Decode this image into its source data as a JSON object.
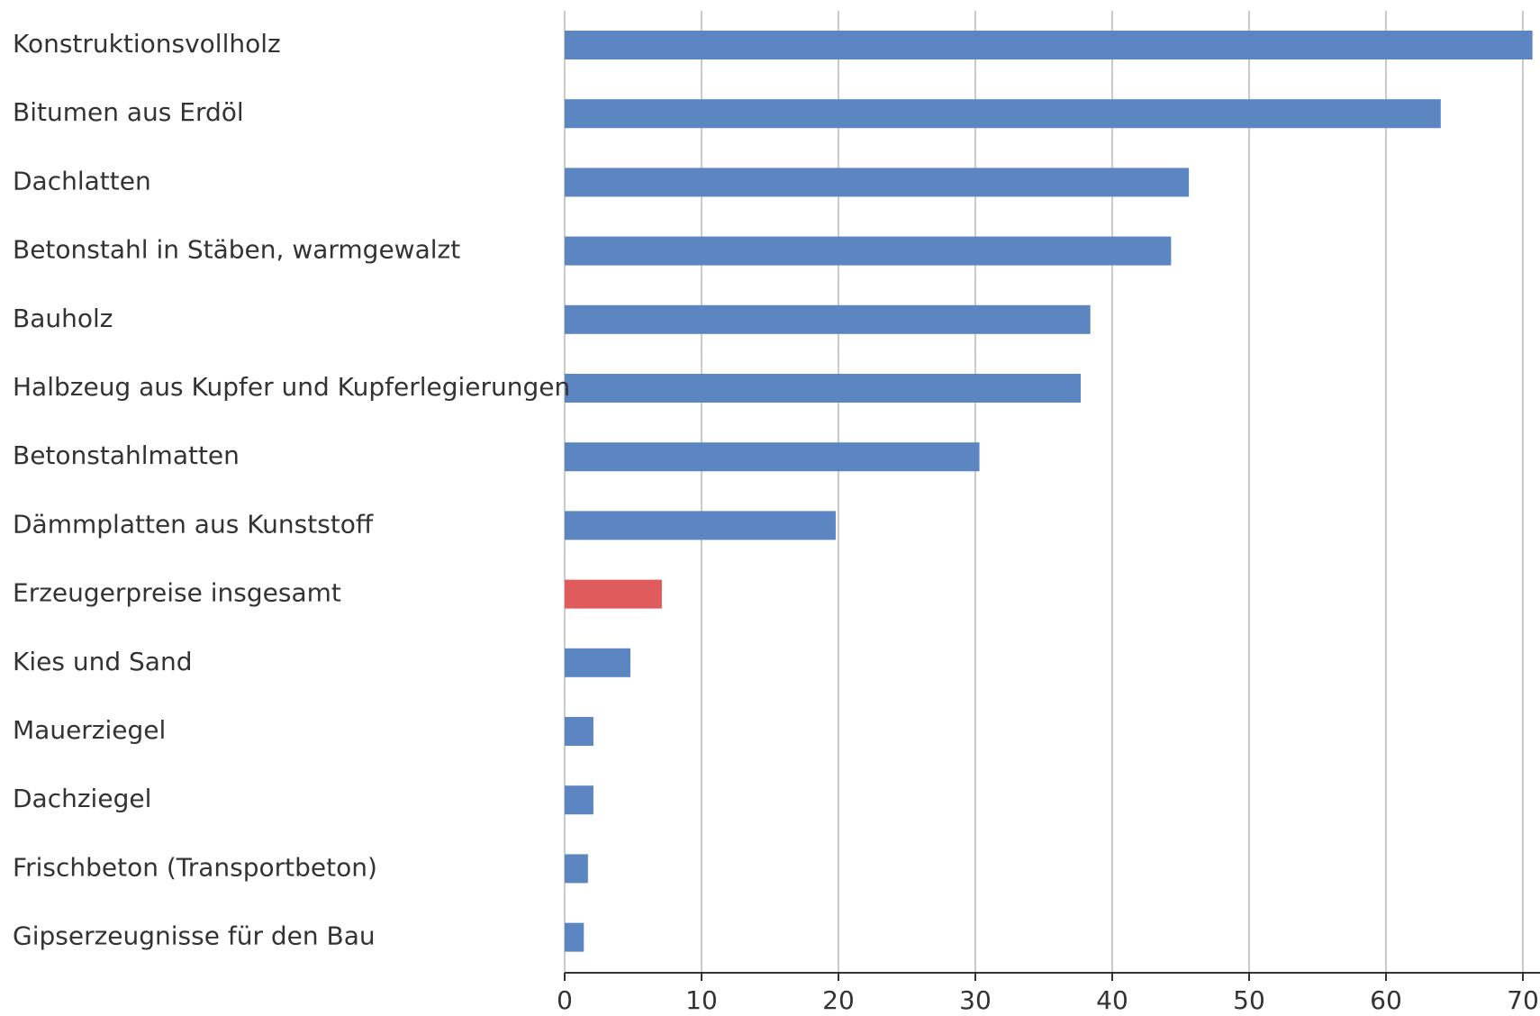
{
  "chart_data": {
    "type": "bar",
    "orientation": "horizontal",
    "categories": [
      "Konstruktionsvollholz",
      "Bitumen aus Erdöl",
      "Dachlatten",
      "Betonstahl in Stäben, warmgewalzt",
      "Bauholz",
      "Halbzeug aus Kupfer und Kupferlegierungen",
      "Betonstahlmatten",
      "Dämmplatten aus Kunststoff",
      "Erzeugerpreise insgesamt",
      "Kies und Sand",
      "Mauerziegel",
      "Dachziegel",
      "Frischbeton (Transportbeton)",
      "Gipserzeugnisse für den Bau"
    ],
    "values": [
      70.7,
      64.0,
      45.6,
      44.3,
      38.4,
      37.7,
      30.3,
      19.8,
      7.1,
      4.8,
      2.1,
      2.1,
      1.7,
      1.4
    ],
    "highlight_index": 8,
    "colors": {
      "bar": "#5b86c2",
      "highlight": "#e05c5c"
    },
    "xticks": [
      "0",
      "10",
      "20",
      "30",
      "40",
      "50",
      "60",
      "70"
    ],
    "xtick_values": [
      0,
      10,
      20,
      30,
      40,
      50,
      60,
      70
    ],
    "xlim": [
      0,
      70
    ],
    "title": "",
    "xlabel": "",
    "ylabel": "",
    "grid": "vertical",
    "legend": "none"
  }
}
